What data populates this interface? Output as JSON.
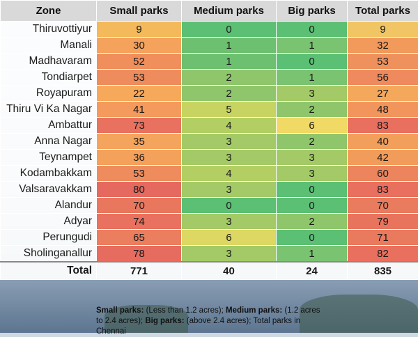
{
  "headers": [
    "Zone",
    "Small parks",
    "Medium parks",
    "Big parks",
    "Total parks"
  ],
  "rows": [
    {
      "zone": "Thiruvottiyur",
      "small": "9",
      "medium": "0",
      "big": "0",
      "total": "9",
      "colors": [
        "#f3b95a",
        "#5bbf74",
        "#5bbf74",
        "#f1c564"
      ]
    },
    {
      "zone": "Manali",
      "small": "30",
      "medium": "1",
      "big": "1",
      "total": "32",
      "colors": [
        "#f5a25d",
        "#6dc06f",
        "#7ac371",
        "#f19a5b"
      ]
    },
    {
      "zone": "Madhavaram",
      "small": "52",
      "medium": "1",
      "big": "0",
      "total": "53",
      "colors": [
        "#f08e5c",
        "#6dc06f",
        "#5bbf74",
        "#ef915d"
      ]
    },
    {
      "zone": "Tondiarpet",
      "small": "53",
      "medium": "2",
      "big": "1",
      "total": "56",
      "colors": [
        "#ee8c5d",
        "#8fc66c",
        "#7ac371",
        "#ee8a5d"
      ]
    },
    {
      "zone": "Royapuram",
      "small": "22",
      "medium": "2",
      "big": "3",
      "total": "27",
      "colors": [
        "#f7a95b",
        "#8fc66c",
        "#a3ca67",
        "#f4a85c"
      ]
    },
    {
      "zone": "Thiru Vi Ka Nagar",
      "small": "41",
      "medium": "5",
      "big": "2",
      "total": "48",
      "colors": [
        "#f39a5c",
        "#c8d462",
        "#8fc66c",
        "#f2955d"
      ]
    },
    {
      "zone": "Ambattur",
      "small": "73",
      "medium": "4",
      "big": "6",
      "total": "83",
      "colors": [
        "#e8725f",
        "#b3cf64",
        "#f1d965",
        "#e96f5e"
      ]
    },
    {
      "zone": "Anna Nagar",
      "small": "35",
      "medium": "3",
      "big": "2",
      "total": "40",
      "colors": [
        "#f4a45c",
        "#a3ca67",
        "#8fc66c",
        "#f39f5c"
      ]
    },
    {
      "zone": "Teynampet",
      "small": "36",
      "medium": "3",
      "big": "3",
      "total": "42",
      "colors": [
        "#f4a15c",
        "#a3ca67",
        "#a3ca67",
        "#f29c5c"
      ]
    },
    {
      "zone": "Kodambakkam",
      "small": "53",
      "medium": "4",
      "big": "3",
      "total": "60",
      "colors": [
        "#ee8c5d",
        "#b3cf64",
        "#a3ca67",
        "#ec855d"
      ]
    },
    {
      "zone": "Valsaravakkam",
      "small": "80",
      "medium": "3",
      "big": "0",
      "total": "83",
      "colors": [
        "#e5695f",
        "#a3ca67",
        "#5bbf74",
        "#e96f5e"
      ]
    },
    {
      "zone": "Alandur",
      "small": "70",
      "medium": "0",
      "big": "0",
      "total": "70",
      "colors": [
        "#e9775e",
        "#5bbf74",
        "#5bbf74",
        "#e97b5e"
      ]
    },
    {
      "zone": "Adyar",
      "small": "74",
      "medium": "3",
      "big": "2",
      "total": "79",
      "colors": [
        "#e8715f",
        "#a3ca67",
        "#8fc66c",
        "#e9745e"
      ]
    },
    {
      "zone": "Perungudi",
      "small": "65",
      "medium": "6",
      "big": "0",
      "total": "71",
      "colors": [
        "#eb7e5e",
        "#ddd763",
        "#5bbf74",
        "#e97a5e"
      ]
    },
    {
      "zone": "Sholinganallur",
      "small": "78",
      "medium": "3",
      "big": "1",
      "total": "82",
      "colors": [
        "#e66c5f",
        "#a3ca67",
        "#7ac371",
        "#e9705e"
      ]
    }
  ],
  "total": {
    "label": "Total",
    "small": "771",
    "medium": "40",
    "big": "24",
    "total": "835"
  },
  "footnote": {
    "small_label": "Small parks:",
    "small_text": " (Less than 1.2 acres); ",
    "medium_label": "Medium parks:",
    "medium_text": " (1.2 acres to 2.4 acres); ",
    "big_label": "Big parks:",
    "big_text": " (above 2.4 acres); Total parks in Chennai"
  }
}
